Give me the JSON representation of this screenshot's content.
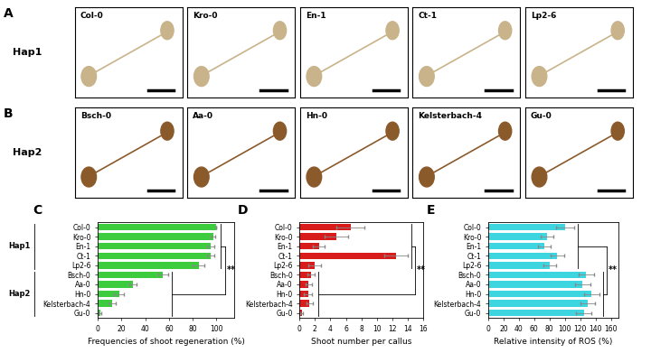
{
  "photo_panels": [
    {
      "panel": "A",
      "row_label": "Hap1",
      "samples": [
        "Col-0",
        "Kro-0",
        "En-1",
        "Ct-1",
        "Lp2-6"
      ]
    },
    {
      "panel": "B",
      "row_label": "Hap2",
      "samples": [
        "Bsch-0",
        "Aa-0",
        "Hn-0",
        "Kelsterbach-4",
        "Gu-0"
      ]
    }
  ],
  "chart_data": [
    {
      "type": "bar",
      "orientation": "horizontal",
      "title": "C",
      "x_label": "Frequencies of shoot regeneration (%)",
      "categories": [
        "Col-0",
        "Kro-0",
        "En-1",
        "Ct-1",
        "Lp2-6",
        "Bsch-0",
        "Aa-0",
        "Hn-0",
        "Kelsterbach-4",
        "Gu-0"
      ],
      "values": [
        100,
        97,
        95,
        95,
        85,
        55,
        30,
        18,
        12,
        2
      ],
      "errors": [
        0,
        2,
        3,
        3,
        5,
        4,
        3,
        4,
        3,
        1
      ],
      "color": "#3dcc3d",
      "xlim": [
        0,
        115
      ],
      "xticks": [
        0,
        20,
        40,
        60,
        80,
        100
      ],
      "groups": [
        {
          "name": "Hap1",
          "size": 5
        },
        {
          "name": "Hap2",
          "size": 5
        }
      ],
      "significance": {
        "label": "**",
        "group_sizes": [
          5,
          5
        ]
      }
    },
    {
      "type": "bar",
      "orientation": "horizontal",
      "title": "D",
      "x_label": "Shoot number per callus",
      "categories": [
        "Col-0",
        "Kro-0",
        "En-1",
        "Ct-1",
        "Lp2-6",
        "Bsch-0",
        "Aa-0",
        "Hn-0",
        "Kelsterbach-4",
        "Gu-0"
      ],
      "values": [
        6.6,
        4.8,
        2.5,
        12.5,
        2.0,
        1.5,
        1.2,
        1.1,
        1.3,
        0.3
      ],
      "errors": [
        1.8,
        1.5,
        0.8,
        1.5,
        0.8,
        0.5,
        0.4,
        0.5,
        0.4,
        0.2
      ],
      "color": "#d81c1c",
      "xlim": [
        0,
        16
      ],
      "xticks": [
        0,
        2,
        4,
        6,
        8,
        10,
        12,
        14,
        16
      ],
      "significance": {
        "label": "**",
        "group_sizes": [
          5,
          5
        ]
      }
    },
    {
      "type": "bar",
      "orientation": "horizontal",
      "title": "E",
      "x_label": "Relative intensity of ROS (%)",
      "categories": [
        "Col-0",
        "Kro-0",
        "En-1",
        "Ct-1",
        "Lp2-6",
        "Bsch-0",
        "Aa-0",
        "Hn-0",
        "Kelsterbach-4",
        "Gu-0"
      ],
      "values": [
        100,
        77,
        73,
        90,
        80,
        128,
        123,
        135,
        130,
        125
      ],
      "errors": [
        12,
        8,
        8,
        9,
        8,
        10,
        10,
        10,
        9,
        10
      ],
      "color": "#3dd6e0",
      "xlim": [
        0,
        170
      ],
      "xticks": [
        0,
        20,
        40,
        60,
        80,
        100,
        120,
        140,
        160
      ],
      "significance": {
        "label": "**",
        "group_sizes": [
          5,
          5
        ]
      }
    }
  ]
}
